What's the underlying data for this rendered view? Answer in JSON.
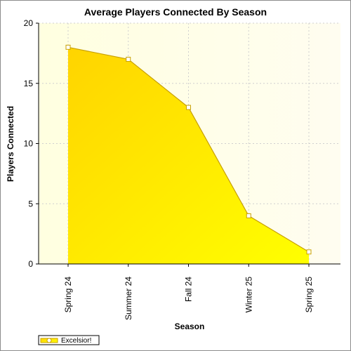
{
  "chart_data": {
    "type": "area",
    "title": "Average Players Connected By Season",
    "xlabel": "Season",
    "ylabel": "Players Connected",
    "categories": [
      "Spring 24",
      "Summer 24",
      "Fall 24",
      "Winter 25",
      "Spring 25"
    ],
    "series": [
      {
        "name": "Excelsior!",
        "values": [
          18,
          17,
          13,
          4,
          1
        ]
      }
    ],
    "ylim": [
      0,
      20
    ],
    "yticks": [
      0,
      5,
      10,
      15,
      20
    ],
    "grid": true,
    "legend_position": "bottom-left",
    "colors": {
      "fill_top": "#ffd400",
      "fill_bottom": "#ffff00",
      "line": "#c8a000",
      "marker_fill": "#ffffff",
      "plot_bg": "#fffde6"
    }
  }
}
